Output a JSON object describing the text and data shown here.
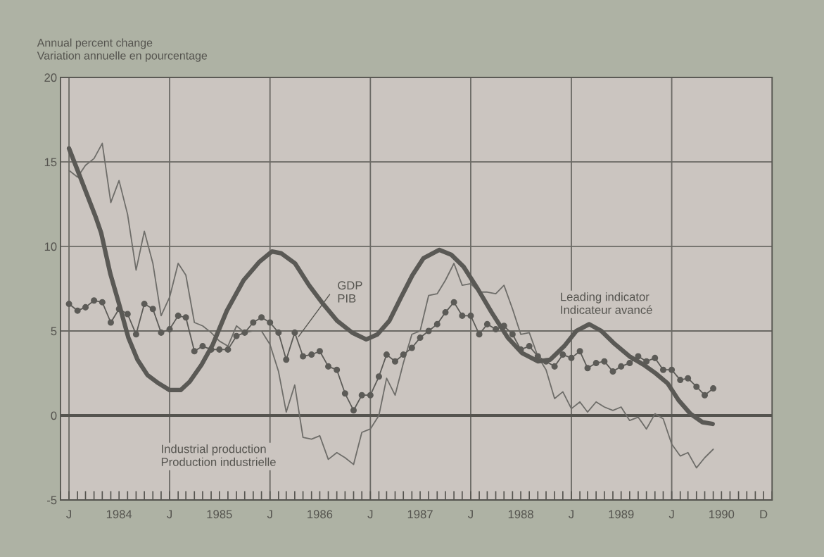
{
  "chart_data": {
    "type": "line",
    "ylabel": "Annual percent change\nVariation annuelle en pourcentage",
    "x": [
      "1984-01",
      "1984-02",
      "1984-03",
      "1984-04",
      "1984-05",
      "1984-06",
      "1984-07",
      "1984-08",
      "1984-09",
      "1984-10",
      "1984-11",
      "1984-12",
      "1985-01",
      "1985-02",
      "1985-03",
      "1985-04",
      "1985-05",
      "1985-06",
      "1985-07",
      "1985-08",
      "1985-09",
      "1985-10",
      "1985-11",
      "1985-12",
      "1986-01",
      "1986-02",
      "1986-03",
      "1986-04",
      "1986-05",
      "1986-06",
      "1986-07",
      "1986-08",
      "1986-09",
      "1986-10",
      "1986-11",
      "1986-12",
      "1987-01",
      "1987-02",
      "1987-03",
      "1987-04",
      "1987-05",
      "1987-06",
      "1987-07",
      "1987-08",
      "1987-09",
      "1987-10",
      "1987-11",
      "1987-12",
      "1988-01",
      "1988-02",
      "1988-03",
      "1988-04",
      "1988-05",
      "1988-06",
      "1988-07",
      "1988-08",
      "1988-09",
      "1988-10",
      "1988-11",
      "1988-12",
      "1989-01",
      "1989-02",
      "1989-03",
      "1989-04",
      "1989-05",
      "1989-06",
      "1989-07",
      "1989-08",
      "1989-09",
      "1989-10",
      "1989-11",
      "1989-12",
      "1990-01",
      "1990-02",
      "1990-03",
      "1990-04",
      "1990-05",
      "1990-06"
    ],
    "series": [
      {
        "name": "Industrial production\nProduction industrielle",
        "color": "#6e6d69",
        "marker": "none",
        "values": [
          14.5,
          14.1,
          14.8,
          15.2,
          16.1,
          12.6,
          13.9,
          11.9,
          8.6,
          10.9,
          9.0,
          5.9,
          7.0,
          9.0,
          8.3,
          5.5,
          5.3,
          4.9,
          4.4,
          4.1,
          5.3,
          4.9,
          5.0,
          5.0,
          4.2,
          2.6,
          0.2,
          1.8,
          -1.3,
          -1.4,
          -1.2,
          -2.6,
          -2.2,
          -2.5,
          -2.9,
          -1.0,
          -0.8,
          0.0,
          2.2,
          1.2,
          3.1,
          4.8,
          5.0,
          7.1,
          7.2,
          8.0,
          9.0,
          7.7,
          7.8,
          7.3,
          7.3,
          7.2,
          7.7,
          6.3,
          4.8,
          4.9,
          3.5,
          2.7,
          1.0,
          1.4,
          0.4,
          0.8,
          0.2,
          0.8,
          0.5,
          0.3,
          0.5,
          -0.3,
          -0.1,
          -0.8,
          0.1,
          -0.2,
          -1.7,
          -2.4,
          -2.2,
          -3.1,
          -2.5,
          -2.0
        ]
      },
      {
        "name": "GDP\nPIB",
        "color": "#5c5b57",
        "marker": "circle",
        "values": [
          6.6,
          6.2,
          6.4,
          6.8,
          6.7,
          5.5,
          6.3,
          6.0,
          4.8,
          6.6,
          6.3,
          4.9,
          5.1,
          5.9,
          5.8,
          3.8,
          4.1,
          3.9,
          3.9,
          3.9,
          4.7,
          4.9,
          5.5,
          5.8,
          5.5,
          4.9,
          3.3,
          4.9,
          3.5,
          3.6,
          3.8,
          2.9,
          2.7,
          1.3,
          0.3,
          1.2,
          1.2,
          2.3,
          3.6,
          3.2,
          3.6,
          4.0,
          4.6,
          5.0,
          5.4,
          6.1,
          6.7,
          5.9,
          5.9,
          4.8,
          5.4,
          5.1,
          5.3,
          4.8,
          3.9,
          4.1,
          3.5,
          3.2,
          2.9,
          3.6,
          3.4,
          3.8,
          2.8,
          3.1,
          3.2,
          2.6,
          2.9,
          3.1,
          3.5,
          3.2,
          3.4,
          2.7,
          2.7,
          2.1,
          2.2,
          1.7,
          1.2,
          1.6
        ]
      },
      {
        "name": "Leading indicator\nIndicateur avancé",
        "color": "#5a5955",
        "marker": "none",
        "x": [
          "1984-01-01",
          "1984-02-06",
          "1984-04-08",
          "1984-04-27",
          "1984-05-30",
          "1984-07-01",
          "1984-08-04",
          "1984-09-06",
          "1984-10-12",
          "1984-11-22",
          "1985-01-01",
          "1985-02-10",
          "1985-03-15",
          "1985-04-27",
          "1985-06-07",
          "1985-07-28",
          "1985-09-27",
          "1985-11-24",
          "1986-01-08",
          "1986-02-10",
          "1986-04-02",
          "1986-05-23",
          "1986-07-13",
          "1986-09-02",
          "1986-10-27",
          "1986-12-17",
          "1987-01-27",
          "1987-03-11",
          "1987-04-23",
          "1987-06-03",
          "1987-07-13",
          "1987-09-09",
          "1987-10-23",
          "1987-12-06",
          "1988-01-26",
          "1988-03-17",
          "1988-05-15",
          "1988-07-05",
          "1988-09-02",
          "1988-10-16",
          "1988-12-06",
          "1989-01-19",
          "1989-03-07",
          "1989-04-20",
          "1989-06-03",
          "1989-07-31",
          "1989-09-21",
          "1989-11-03",
          "1989-12-17",
          "1990-01-26",
          "1990-03-10",
          "1990-04-23",
          "1990-05-30"
        ],
        "values": [
          15.8,
          14.3,
          11.7,
          10.8,
          8.4,
          6.6,
          4.6,
          3.3,
          2.4,
          1.9,
          1.5,
          1.5,
          2.0,
          3.0,
          4.2,
          6.2,
          8.0,
          9.1,
          9.7,
          9.6,
          9.0,
          7.7,
          6.6,
          5.6,
          4.9,
          4.5,
          4.8,
          5.6,
          7.0,
          8.3,
          9.3,
          9.8,
          9.5,
          8.8,
          7.5,
          6.1,
          4.6,
          3.7,
          3.2,
          3.3,
          4.1,
          5.0,
          5.4,
          5.0,
          4.3,
          3.5,
          3.0,
          2.5,
          1.9,
          0.9,
          0.1,
          -0.4,
          -0.5
        ]
      }
    ],
    "xlim": [
      "1983-12-01",
      "1991-01-01"
    ],
    "xticks": [
      {
        "value": "1984-01",
        "label": "J"
      },
      {
        "value": "1984-07",
        "label": "1984"
      },
      {
        "value": "1985-01",
        "label": "J"
      },
      {
        "value": "1985-07",
        "label": "1985"
      },
      {
        "value": "1986-01",
        "label": "J"
      },
      {
        "value": "1986-07",
        "label": "1986"
      },
      {
        "value": "1987-01",
        "label": "J"
      },
      {
        "value": "1987-07",
        "label": "1987"
      },
      {
        "value": "1988-01",
        "label": "J"
      },
      {
        "value": "1988-07",
        "label": "1988"
      },
      {
        "value": "1989-01",
        "label": "J"
      },
      {
        "value": "1989-07",
        "label": "1989"
      },
      {
        "value": "1990-01",
        "label": "J"
      },
      {
        "value": "1990-07",
        "label": "1990"
      },
      {
        "value": "1990-12",
        "label": "D"
      }
    ],
    "ylim": [
      -5,
      20
    ],
    "yticks": [
      -5,
      0,
      5,
      10,
      15,
      20
    ],
    "grid": true,
    "ref_lines": [
      {
        "axis": "y",
        "value": 0,
        "color": "#55544f"
      }
    ],
    "line_style": "solid"
  }
}
